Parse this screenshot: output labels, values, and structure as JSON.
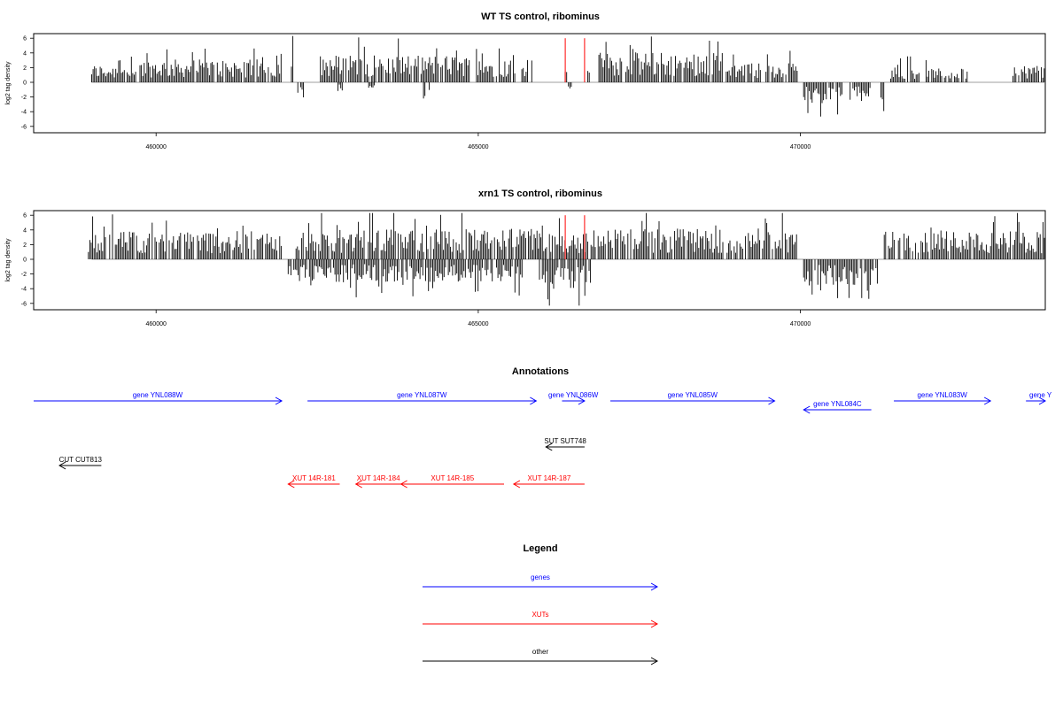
{
  "chart_data": [
    {
      "type": "bar",
      "title": "WT TS control, ribominus",
      "ylabel": "log2 tag density",
      "xlim": [
        458100,
        473800
      ],
      "ylim": [
        -7,
        7
      ],
      "x_ticks": [
        460000,
        465000,
        470000
      ],
      "x_tick_labels": [
        "460000",
        "465000",
        "470000"
      ],
      "y_ticks": [
        -6,
        -4,
        -2,
        0,
        2,
        4,
        6
      ],
      "y_tick_labels": [
        "-6",
        "-4",
        "-2",
        "0",
        "2",
        "4",
        "6"
      ],
      "bar_color": "#000000",
      "baseline_color": "#7f7f7f",
      "positive_segments": [
        {
          "start": 459000,
          "end": 459700,
          "level": 2.0
        },
        {
          "start": 459750,
          "end": 460900,
          "level": 2.6
        },
        {
          "start": 460950,
          "end": 461950,
          "level": 2.6
        },
        {
          "start": 462100,
          "end": 462150,
          "level": 3.5
        },
        {
          "start": 462550,
          "end": 464900,
          "level": 3.1
        },
        {
          "start": 464950,
          "end": 465850,
          "level": 2.7
        },
        {
          "start": 466350,
          "end": 466380,
          "level": 2.2
        },
        {
          "start": 466700,
          "end": 466730,
          "level": 2.0
        },
        {
          "start": 466850,
          "end": 468800,
          "level": 3.4
        },
        {
          "start": 468850,
          "end": 469950,
          "level": 2.2
        },
        {
          "start": 471400,
          "end": 471850,
          "level": 1.8
        },
        {
          "start": 471950,
          "end": 472600,
          "level": 1.6
        },
        {
          "start": 473300,
          "end": 473800,
          "level": 2.0
        }
      ],
      "negative_segments": [
        {
          "start": 462200,
          "end": 462300,
          "level": -2.0
        },
        {
          "start": 462800,
          "end": 462900,
          "level": -1.0
        },
        {
          "start": 463300,
          "end": 463400,
          "level": -0.8
        },
        {
          "start": 464150,
          "end": 464250,
          "level": -2.0
        },
        {
          "start": 466400,
          "end": 466450,
          "level": -1.0
        },
        {
          "start": 470050,
          "end": 470650,
          "level": -2.4
        },
        {
          "start": 470750,
          "end": 471100,
          "level": -2.2
        },
        {
          "start": 471250,
          "end": 471300,
          "level": -2.0
        }
      ],
      "red_lines": [
        {
          "x": 466350,
          "y": 6
        },
        {
          "x": 466650,
          "y": 6
        }
      ]
    },
    {
      "type": "bar",
      "title": "xrn1 TS control, ribominus",
      "ylabel": "log2 tag density",
      "xlim": [
        458100,
        473800
      ],
      "ylim": [
        -7,
        7
      ],
      "x_ticks": [
        460000,
        465000,
        470000
      ],
      "x_tick_labels": [
        "460000",
        "465000",
        "470000"
      ],
      "y_ticks": [
        -6,
        -4,
        -2,
        0,
        2,
        4,
        6
      ],
      "y_tick_labels": [
        "-6",
        "-4",
        "-2",
        "0",
        "2",
        "4",
        "6"
      ],
      "bar_color": "#000000",
      "baseline_color": "#7f7f7f",
      "positive_segments": [
        {
          "start": 458950,
          "end": 461950,
          "level": 3.2
        },
        {
          "start": 462150,
          "end": 465950,
          "level": 3.5
        },
        {
          "start": 465950,
          "end": 466700,
          "level": 3.0
        },
        {
          "start": 466750,
          "end": 469950,
          "level": 3.5
        },
        {
          "start": 471300,
          "end": 473800,
          "level": 3.3
        }
      ],
      "negative_segments": [
        {
          "start": 462050,
          "end": 465700,
          "level": -2.6
        },
        {
          "start": 465950,
          "end": 466750,
          "level": -3.5
        },
        {
          "start": 470050,
          "end": 471200,
          "level": -3.0
        }
      ],
      "red_lines": [
        {
          "x": 466350,
          "y": 6
        },
        {
          "x": 466650,
          "y": 6
        }
      ]
    }
  ],
  "annotations": {
    "title": "Annotations",
    "rows": [
      {
        "id": "gene1",
        "label": "gene YNL088W",
        "color": "#0000ff",
        "start": 458100,
        "end": 461950,
        "strand": "+",
        "row": 0
      },
      {
        "id": "gene2",
        "label": "gene YNL087W",
        "color": "#0000ff",
        "start": 462350,
        "end": 465900,
        "strand": "+",
        "row": 0
      },
      {
        "id": "gene3",
        "label": "gene YNL086W",
        "color": "#0000ff",
        "start": 466300,
        "end": 466650,
        "strand": "+",
        "row": 0
      },
      {
        "id": "gene4",
        "label": "gene YNL085W",
        "color": "#0000ff",
        "start": 467050,
        "end": 469600,
        "strand": "+",
        "row": 0
      },
      {
        "id": "gene5",
        "label": "gene YNL084C",
        "color": "#0000ff",
        "start": 470050,
        "end": 471100,
        "strand": "-",
        "row": 1
      },
      {
        "id": "gene6",
        "label": "gene YNL083W",
        "color": "#0000ff",
        "start": 471450,
        "end": 472950,
        "strand": "+",
        "row": 0
      },
      {
        "id": "gene7",
        "label": "gene Y",
        "color": "#0000ff",
        "start": 473500,
        "end": 473800,
        "strand": "+",
        "row": 0
      },
      {
        "id": "sut",
        "label": "SUT SUT748",
        "color": "#000000",
        "start": 466050,
        "end": 466650,
        "strand": "-",
        "row": 2
      },
      {
        "id": "cut",
        "label": "CUT CUT813",
        "color": "#000000",
        "start": 458500,
        "end": 459150,
        "strand": "-",
        "row": 3
      },
      {
        "id": "xut1",
        "label": "XUT 14R-181",
        "color": "#ff0000",
        "start": 462050,
        "end": 462850,
        "strand": "-",
        "row": 4
      },
      {
        "id": "xut2",
        "label": "XUT 14R-184",
        "color": "#ff0000",
        "start": 463100,
        "end": 463800,
        "strand": "-",
        "row": 4
      },
      {
        "id": "xut3",
        "label": "XUT 14R-185",
        "color": "#ff0000",
        "start": 463800,
        "end": 465400,
        "strand": "-",
        "row": 4
      },
      {
        "id": "xut4",
        "label": "XUT 14R-187",
        "color": "#ff0000",
        "start": 465550,
        "end": 466650,
        "strand": "-",
        "row": 4
      }
    ]
  },
  "legend": {
    "title": "Legend",
    "items": [
      {
        "label": "genes",
        "color": "#0000ff"
      },
      {
        "label": "XUTs",
        "color": "#ff0000"
      },
      {
        "label": "other",
        "color": "#000000"
      }
    ]
  }
}
